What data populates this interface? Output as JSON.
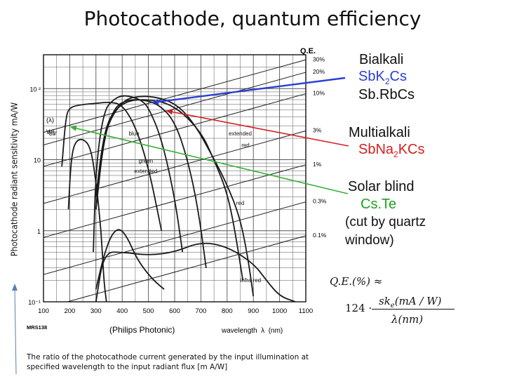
{
  "slide": {
    "title": "Photocathode, quantum efficiency",
    "y_caption": "Photocathode radiant sensitivity mA/W",
    "caption": "The ratio of the photocathode current generated by the input illumination at specified wavelength to the input radiant flux [m A/W]"
  },
  "legend": {
    "group1_title": "Bialkali",
    "group1_item1": "SbK",
    "group1_item1_sub": "2",
    "group1_item1_tail": "Cs",
    "group1_item2": "Sb.RbCs",
    "group2_title": "Multialkali",
    "group2_item1_a": "SbNa",
    "group2_item1_sub": "2",
    "group2_item1_b": "KCs",
    "group3_title": "Solar blind",
    "group3_item1": "Cs.Te",
    "group3_note1": "(cut by quartz",
    "group3_note2": "window)",
    "colors": {
      "blue": "#2a3fd6",
      "red": "#d42020",
      "green": "#33b233",
      "text_dark": "#111111"
    }
  },
  "formula": {
    "lhs": "Q.E.(%) ≈",
    "factor": "124 ·",
    "numerator": "sk",
    "numerator_sub": "e",
    "numerator_tail": "(mA / W)",
    "denominator": "λ(nm)"
  },
  "chart_data": {
    "type": "line",
    "y_scale": "log",
    "xlabel": "wavelength  λ  (nm)",
    "ylabel_lines": [
      "(λ)",
      "W)"
    ],
    "footer_left": "(Philips Photonic)",
    "corner_code": "MRS138",
    "qe_axis_title": "Q.E.",
    "x_ticks": [
      100,
      200,
      300,
      400,
      500,
      600,
      700,
      800,
      900,
      1000,
      1100
    ],
    "xlim": [
      100,
      1100
    ],
    "ylim": [
      0.1,
      300
    ],
    "y_ticks": [
      {
        "value": 0.1,
        "label": "10⁻¹"
      },
      {
        "value": 1,
        "label": "1"
      },
      {
        "value": 10,
        "label": "10"
      },
      {
        "value": 100,
        "label": "10 ²"
      }
    ],
    "qe_lines": [
      {
        "percent": 30,
        "label": "30%"
      },
      {
        "percent": 20,
        "label": "20%"
      },
      {
        "percent": 10,
        "label": "10%"
      },
      {
        "percent": 3,
        "label": "3%"
      },
      {
        "percent": 1,
        "label": "1%"
      },
      {
        "percent": 0.3,
        "label": "0.3%"
      },
      {
        "percent": 0.1,
        "label": "0.1%"
      }
    ],
    "curve_labels": [
      {
        "text": "UV",
        "x": 135,
        "y": 22
      },
      {
        "text": "blue",
        "x": 445,
        "y": 22
      },
      {
        "text": "extended",
        "x": 850,
        "y": 22
      },
      {
        "text": "red",
        "x": 870,
        "y": 15
      },
      {
        "text": "green",
        "x": 490,
        "y": 9
      },
      {
        "text": "extended",
        "x": 490,
        "y": 6.5
      },
      {
        "text": "red",
        "x": 850,
        "y": 2.3
      },
      {
        "text": "infra red",
        "x": 890,
        "y": 0.19
      }
    ],
    "series": [
      {
        "name": "UV",
        "x": [
          170,
          185,
          200,
          250,
          300,
          350,
          400,
          450,
          500,
          550
        ],
        "y": [
          8,
          40,
          55,
          60,
          62,
          65,
          60,
          30,
          8,
          1
        ]
      },
      {
        "name": "blue",
        "x": [
          290,
          300,
          330,
          370,
          400,
          430,
          470,
          500,
          550,
          600,
          630
        ],
        "y": [
          0.5,
          8,
          50,
          72,
          80,
          78,
          70,
          55,
          20,
          3,
          0.5
        ]
      },
      {
        "name": "green extended",
        "x": [
          300,
          330,
          370,
          420,
          480,
          540,
          600,
          650,
          690,
          720
        ],
        "y": [
          2,
          20,
          55,
          70,
          70,
          60,
          35,
          10,
          2,
          0.3
        ]
      },
      {
        "name": "extended red",
        "x": [
          300,
          330,
          400,
          480,
          560,
          620,
          680,
          740,
          800,
          850,
          880,
          900
        ],
        "y": [
          3,
          25,
          70,
          80,
          72,
          55,
          30,
          12,
          4.5,
          1.5,
          0.4,
          0.12
        ]
      },
      {
        "name": "red",
        "x": [
          300,
          330,
          400,
          500,
          600,
          700,
          750,
          800,
          830,
          860
        ],
        "y": [
          2,
          30,
          66,
          72,
          58,
          25,
          10,
          3.5,
          1,
          0.2
        ]
      },
      {
        "name": "solar blind",
        "x": [
          195,
          205,
          220,
          250,
          280,
          300,
          320,
          330,
          340
        ],
        "y": [
          2,
          10,
          18,
          20,
          15,
          5,
          1,
          0.2,
          0.1
        ]
      },
      {
        "name": "infra red",
        "x": [
          300,
          330,
          400,
          500,
          600,
          700,
          800,
          900,
          950,
          1000,
          1060
        ],
        "y": [
          0.1,
          0.5,
          0.5,
          0.45,
          0.5,
          0.7,
          0.6,
          0.35,
          0.2,
          0.12,
          0.1
        ]
      },
      {
        "name": "bump",
        "x": [
          300,
          330,
          360,
          390,
          420,
          450,
          480,
          520,
          560
        ],
        "y": [
          0.15,
          0.45,
          0.9,
          1.1,
          0.8,
          0.45,
          0.3,
          0.2,
          0.15
        ]
      }
    ]
  }
}
